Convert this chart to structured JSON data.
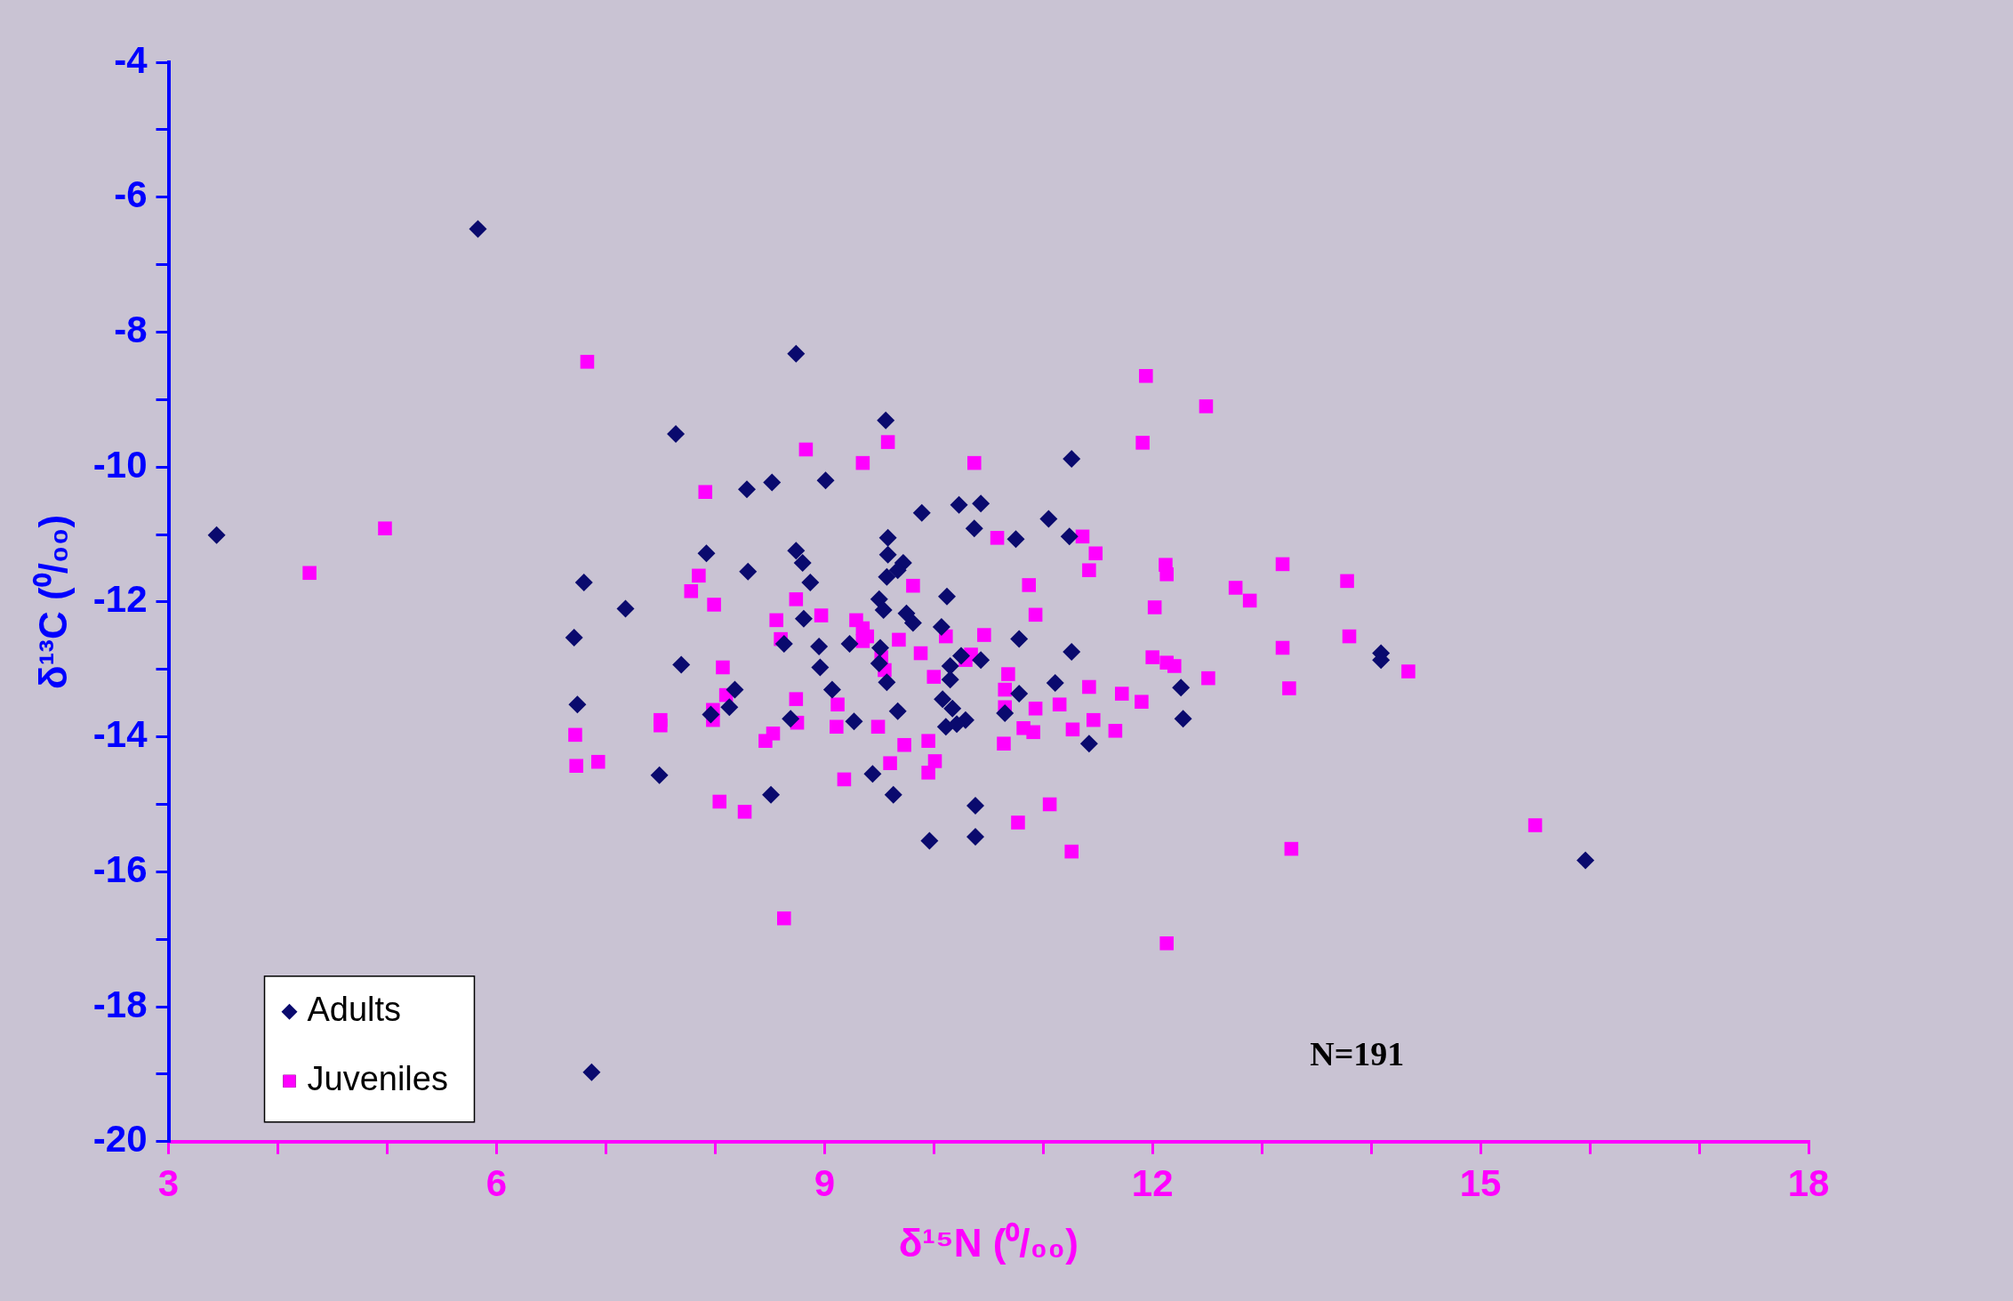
{
  "chart_data": {
    "type": "scatter",
    "xlabel": "δ¹⁵N (⁰/₀₀)",
    "ylabel": "δ¹³C (⁰/₀₀)",
    "xlim": [
      3,
      18
    ],
    "ylim": [
      -20,
      -4
    ],
    "xticks": [
      3,
      {
        "value": 4,
        "label": null
      },
      {
        "value": 5,
        "label": null
      },
      6,
      {
        "value": 7,
        "label": null
      },
      {
        "value": 8,
        "label": null
      },
      9,
      {
        "value": 10,
        "label": null
      },
      {
        "value": 11,
        "label": null
      },
      12,
      {
        "value": 13,
        "label": null
      },
      {
        "value": 14,
        "label": null
      },
      15,
      {
        "value": 16,
        "label": null
      },
      {
        "value": 17,
        "label": null
      },
      18
    ],
    "yticks": [
      -20,
      {
        "value": -19,
        "label": null
      },
      -18,
      {
        "value": -17,
        "label": null
      },
      -16,
      {
        "value": -15,
        "label": null
      },
      -14,
      {
        "value": -13,
        "label": null
      },
      -12,
      {
        "value": -11,
        "label": null
      },
      -10,
      {
        "value": -9,
        "label": null
      },
      -8,
      {
        "value": -7,
        "label": null
      },
      -6,
      {
        "value": -5,
        "label": null
      },
      -4
    ],
    "grid": false,
    "legend": "bottom left",
    "annotations": [
      "N=191"
    ],
    "series": [
      {
        "name": "Adults",
        "color": "#0a0a6e",
        "marker": "diamond",
        "x": [
          3.44,
          5.83,
          8.74,
          9.56,
          7.64,
          11.26,
          9.01,
          8.52,
          8.29,
          9.89,
          10.23,
          10.43,
          11.05,
          10.37,
          10.75,
          9.58,
          11.24,
          7.92,
          8.74,
          9.58,
          8.8,
          9.72,
          8.3,
          9.67,
          9.57,
          8.87,
          6.8,
          10.12,
          9.5,
          9.54,
          7.18,
          9.75,
          8.81,
          9.81,
          10.07,
          6.71,
          10.78,
          8.63,
          8.95,
          9.23,
          9.51,
          11.26,
          14.09,
          14.09,
          10.25,
          7.69,
          9.5,
          8.96,
          10.43,
          10.15,
          10.15,
          9.57,
          11.11,
          9.07,
          12.26,
          8.18,
          6.74,
          10.78,
          10.08,
          10.17,
          8.13,
          9.67,
          10.65,
          7.96,
          8.69,
          12.28,
          10.29,
          10.11,
          9.27,
          10.21,
          11.42,
          7.49,
          9.44,
          9.63,
          8.51,
          10.38,
          9.96,
          10.38,
          15.96,
          6.87
        ],
        "values": [
          -11.01,
          -6.47,
          -8.32,
          -9.31,
          -9.51,
          -9.88,
          -10.2,
          -10.23,
          -10.33,
          -10.68,
          -10.56,
          -10.54,
          -10.77,
          -10.91,
          -11.07,
          -11.05,
          -11.03,
          -11.28,
          -11.24,
          -11.3,
          -11.42,
          -11.42,
          -11.55,
          -11.53,
          -11.63,
          -11.71,
          -11.71,
          -11.92,
          -11.96,
          -12.12,
          -12.1,
          -12.17,
          -12.25,
          -12.31,
          -12.37,
          -12.53,
          -12.55,
          -12.62,
          -12.66,
          -12.62,
          -12.68,
          -12.74,
          -12.76,
          -12.86,
          -12.8,
          -12.93,
          -12.91,
          -12.97,
          -12.86,
          -12.95,
          -13.15,
          -13.19,
          -13.2,
          -13.3,
          -13.27,
          -13.3,
          -13.52,
          -13.36,
          -13.44,
          -13.58,
          -13.56,
          -13.62,
          -13.65,
          -13.67,
          -13.73,
          -13.73,
          -13.75,
          -13.85,
          -13.77,
          -13.81,
          -14.1,
          -14.57,
          -14.55,
          -14.86,
          -14.86,
          -15.02,
          -15.54,
          -15.48,
          -15.83,
          -18.97
        ]
      },
      {
        "name": "Juveniles",
        "color": "#ff00ff",
        "marker": "square",
        "x": [
          4.29,
          4.98,
          6.83,
          6.72,
          6.73,
          6.93,
          7.5,
          7.5,
          7.91,
          7.78,
          7.85,
          7.99,
          8.07,
          8.1,
          7.98,
          7.98,
          8.04,
          8.27,
          8.46,
          8.53,
          8.56,
          8.6,
          8.63,
          8.74,
          8.74,
          8.75,
          8.83,
          8.97,
          9.12,
          9.11,
          9.18,
          9.29,
          9.35,
          9.35,
          9.35,
          9.39,
          9.49,
          9.52,
          9.55,
          9.58,
          9.6,
          9.68,
          9.73,
          9.81,
          9.88,
          9.95,
          9.95,
          10.01,
          10.0,
          10.11,
          10.29,
          10.34,
          10.37,
          10.46,
          10.58,
          10.64,
          10.65,
          10.65,
          10.68,
          10.77,
          10.82,
          10.87,
          10.91,
          10.93,
          10.93,
          11.06,
          11.15,
          11.26,
          11.27,
          11.36,
          11.42,
          11.42,
          11.48,
          11.46,
          11.66,
          11.72,
          11.9,
          11.91,
          11.94,
          12.0,
          12.02,
          12.12,
          12.13,
          12.13,
          12.13,
          12.2,
          12.49,
          12.51,
          12.76,
          12.89,
          13.19,
          13.19,
          13.25,
          13.27,
          13.78,
          13.8,
          14.34,
          15.5
        ],
        "values": [
          -11.57,
          -10.91,
          -8.44,
          -13.97,
          -14.43,
          -14.37,
          -13.75,
          -13.83,
          -10.37,
          -11.84,
          -11.61,
          -12.04,
          -12.97,
          -13.38,
          -13.6,
          -13.75,
          -14.96,
          -15.11,
          -14.06,
          -13.95,
          -12.27,
          -12.55,
          -16.69,
          -11.96,
          -13.44,
          -13.79,
          -9.74,
          -12.2,
          -13.52,
          -13.85,
          -14.63,
          -12.27,
          -9.94,
          -12.39,
          -12.58,
          -12.51,
          -13.85,
          -12.82,
          -13.01,
          -9.63,
          -14.39,
          -12.56,
          -14.12,
          -11.76,
          -12.76,
          -14.06,
          -14.53,
          -14.36,
          -13.11,
          -12.51,
          -12.86,
          -12.78,
          -9.94,
          -12.49,
          -11.05,
          -14.1,
          -13.3,
          -13.56,
          -13.07,
          -15.27,
          -13.87,
          -11.75,
          -13.93,
          -12.19,
          -13.58,
          -15.0,
          -13.52,
          -15.7,
          -13.89,
          -11.03,
          -13.26,
          -11.53,
          -11.28,
          -13.75,
          -13.91,
          -13.36,
          -13.48,
          -9.64,
          -8.65,
          -12.82,
          -12.08,
          -11.45,
          -11.59,
          -12.9,
          -17.06,
          -12.95,
          -9.1,
          -13.13,
          -11.79,
          -11.98,
          -11.44,
          -12.68,
          -13.28,
          -15.66,
          -11.69,
          -12.51,
          -13.03,
          -15.31
        ]
      }
    ]
  }
}
